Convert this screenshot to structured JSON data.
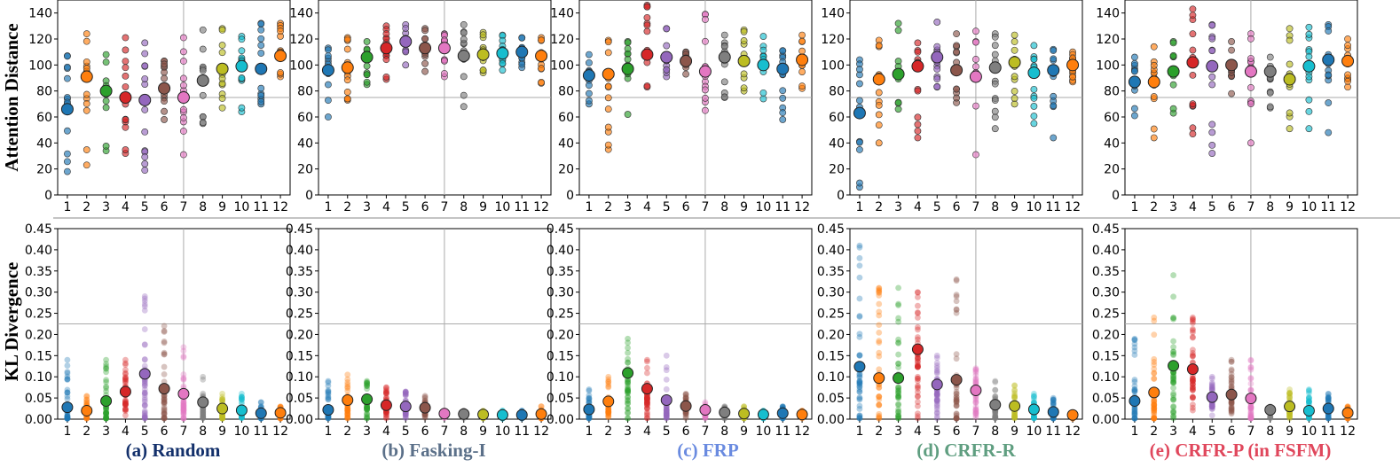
{
  "colors": [
    "#1f77b4",
    "#ff7f0e",
    "#2ca02c",
    "#d62728",
    "#9467bd",
    "#8c564b",
    "#e377c2",
    "#7f7f7f",
    "#bcbd22",
    "#17becf",
    "#1f77b4",
    "#ff7f0e"
  ],
  "caption_colors": [
    "#13306b",
    "#5b7089",
    "#6a8be0",
    "#5f9e80",
    "#e0475c"
  ],
  "chart_data": {
    "type": "scatter",
    "rows": [
      {
        "ylabel": "Attention Distance",
        "ylim": [
          0,
          150
        ],
        "yticks": [
          "0",
          "20",
          "40",
          "60",
          "80",
          "100",
          "120",
          "140"
        ],
        "ytick_values": [
          0,
          20,
          40,
          60,
          80,
          100,
          120,
          140
        ],
        "hline": 75
      },
      {
        "ylabel": "KL Divergence",
        "ylim": [
          0,
          0.45
        ],
        "yticks": [
          "0.00",
          "0.05",
          "0.10",
          "0.15",
          "0.20",
          "0.25",
          "0.30",
          "0.35",
          "0.40",
          "0.45"
        ],
        "ytick_values": [
          0,
          0.05,
          0.1,
          0.15,
          0.2,
          0.25,
          0.3,
          0.35,
          0.4,
          0.45
        ],
        "hline": 0.225
      }
    ],
    "x_categories": [
      "1",
      "2",
      "3",
      "4",
      "5",
      "6",
      "7",
      "8",
      "9",
      "10",
      "11",
      "12"
    ],
    "vline_after": 6.5,
    "panels": [
      {
        "caption": "(a) Random",
        "attention_mean": [
          66,
          91,
          80,
          75,
          73,
          82,
          75,
          88,
          97,
          99,
          97,
          107
        ],
        "attention_range": [
          [
            18,
            107
          ],
          [
            23,
            124
          ],
          [
            34,
            108
          ],
          [
            32,
            121
          ],
          [
            19,
            117
          ],
          [
            58,
            103
          ],
          [
            31,
            121
          ],
          [
            55,
            127
          ],
          [
            67,
            128
          ],
          [
            64,
            122
          ],
          [
            70,
            132
          ],
          [
            91,
            132
          ]
        ],
        "kl_mean": [
          0.028,
          0.02,
          0.043,
          0.065,
          0.107,
          0.072,
          0.06,
          0.04,
          0.025,
          0.021,
          0.014,
          0.015
        ],
        "kl_max": [
          0.14,
          0.055,
          0.14,
          0.14,
          0.29,
          0.22,
          0.17,
          0.1,
          0.06,
          0.06,
          0.04,
          0.03
        ]
      },
      {
        "caption": "(b) Fasking-I",
        "attention_mean": [
          96,
          98,
          106,
          113,
          118,
          113,
          113,
          107,
          108,
          109,
          110,
          107
        ],
        "attention_range": [
          [
            60,
            113
          ],
          [
            73,
            121
          ],
          [
            85,
            118
          ],
          [
            89,
            130
          ],
          [
            100,
            131
          ],
          [
            95,
            128
          ],
          [
            91,
            124
          ],
          [
            68,
            131
          ],
          [
            94,
            125
          ],
          [
            96,
            123
          ],
          [
            98,
            121
          ],
          [
            86,
            121
          ]
        ],
        "kl_mean": [
          0.022,
          0.045,
          0.047,
          0.033,
          0.03,
          0.027,
          0.013,
          0.012,
          0.011,
          0.01,
          0.01,
          0.012
        ],
        "kl_max": [
          0.09,
          0.105,
          0.09,
          0.075,
          0.065,
          0.055,
          0.02,
          0.02,
          0.02,
          0.02,
          0.02,
          0.03
        ]
      },
      {
        "caption": "(c) FRP",
        "attention_mean": [
          92,
          93,
          97,
          108,
          106,
          103,
          95,
          106,
          103,
          100,
          97,
          104
        ],
        "attention_range": [
          [
            70,
            108
          ],
          [
            35,
            119
          ],
          [
            62,
            118
          ],
          [
            83,
            146
          ],
          [
            91,
            128
          ],
          [
            93,
            110
          ],
          [
            65,
            139
          ],
          [
            75,
            123
          ],
          [
            80,
            127
          ],
          [
            74,
            122
          ],
          [
            58,
            111
          ],
          [
            82,
            123
          ]
        ],
        "kl_mean": [
          0.023,
          0.042,
          0.109,
          0.072,
          0.045,
          0.031,
          0.022,
          0.016,
          0.013,
          0.011,
          0.014,
          0.011
        ],
        "kl_max": [
          0.07,
          0.1,
          0.19,
          0.14,
          0.15,
          0.06,
          0.04,
          0.03,
          0.03,
          0.02,
          0.03,
          0.02
        ]
      },
      {
        "caption": "(d) CRFR-R",
        "attention_mean": [
          63,
          89,
          93,
          99,
          106,
          96,
          91,
          98,
          102,
          94,
          96,
          100
        ],
        "attention_range": [
          [
            6,
            104
          ],
          [
            40,
            119
          ],
          [
            66,
            132
          ],
          [
            44,
            117
          ],
          [
            83,
            133
          ],
          [
            71,
            124
          ],
          [
            31,
            126
          ],
          [
            51,
            124
          ],
          [
            70,
            123
          ],
          [
            55,
            115
          ],
          [
            44,
            112
          ],
          [
            87,
            110
          ]
        ],
        "kl_mean": [
          0.124,
          0.097,
          0.097,
          0.165,
          0.082,
          0.093,
          0.068,
          0.034,
          0.031,
          0.023,
          0.017,
          0.01
        ],
        "kl_max": [
          0.41,
          0.31,
          0.31,
          0.3,
          0.15,
          0.33,
          0.12,
          0.09,
          0.08,
          0.06,
          0.05,
          0.01
        ]
      },
      {
        "caption": "(e) CRFR-P (in FSFM)",
        "attention_mean": [
          87,
          87,
          95,
          102,
          99,
          100,
          95,
          95,
          89,
          99,
          104,
          103
        ],
        "attention_range": [
          [
            61,
            106
          ],
          [
            44,
            114
          ],
          [
            63,
            118
          ],
          [
            47,
            143
          ],
          [
            32,
            131
          ],
          [
            78,
            118
          ],
          [
            40,
            124
          ],
          [
            67,
            106
          ],
          [
            51,
            128
          ],
          [
            51,
            129
          ],
          [
            48,
            131
          ],
          [
            83,
            120
          ]
        ],
        "kl_mean": [
          0.043,
          0.063,
          0.126,
          0.118,
          0.052,
          0.058,
          0.049,
          0.022,
          0.03,
          0.02,
          0.025,
          0.015
        ],
        "kl_max": [
          0.19,
          0.24,
          0.34,
          0.24,
          0.1,
          0.14,
          0.14,
          0.03,
          0.07,
          0.07,
          0.06,
          0.03
        ]
      }
    ]
  }
}
